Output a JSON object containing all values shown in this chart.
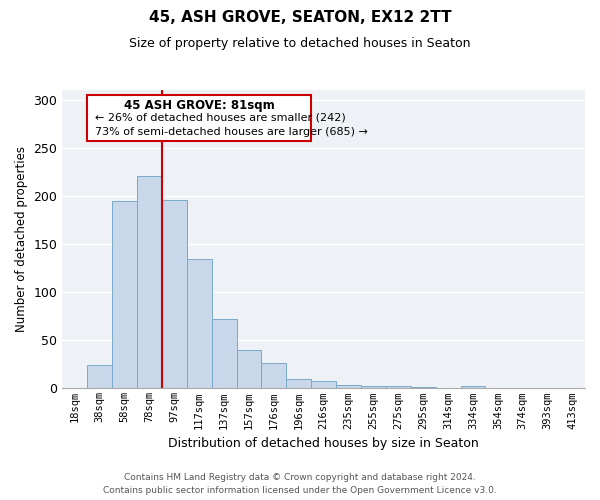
{
  "title": "45, ASH GROVE, SEATON, EX12 2TT",
  "subtitle": "Size of property relative to detached houses in Seaton",
  "xlabel": "Distribution of detached houses by size in Seaton",
  "ylabel": "Number of detached properties",
  "bar_labels": [
    "18sqm",
    "38sqm",
    "58sqm",
    "78sqm",
    "97sqm",
    "117sqm",
    "137sqm",
    "157sqm",
    "176sqm",
    "196sqm",
    "216sqm",
    "235sqm",
    "255sqm",
    "275sqm",
    "295sqm",
    "314sqm",
    "334sqm",
    "354sqm",
    "374sqm",
    "393sqm",
    "413sqm"
  ],
  "bar_values": [
    0,
    24,
    195,
    221,
    196,
    134,
    72,
    40,
    26,
    10,
    8,
    4,
    3,
    2,
    1,
    0,
    3,
    0,
    0,
    0,
    0
  ],
  "bar_color": "#c8d8ea",
  "bar_edge_color": "#7aaac8",
  "vline_color": "#cc0000",
  "ylim": [
    0,
    310
  ],
  "yticks": [
    0,
    50,
    100,
    150,
    200,
    250,
    300
  ],
  "annotation_title": "45 ASH GROVE: 81sqm",
  "annotation_line1": "← 26% of detached houses are smaller (242)",
  "annotation_line2": "73% of semi-detached houses are larger (685) →",
  "footer_line1": "Contains HM Land Registry data © Crown copyright and database right 2024.",
  "footer_line2": "Contains public sector information licensed under the Open Government Licence v3.0.",
  "background_color": "#eef2f7",
  "grid_color": "#ffffff",
  "title_fontsize": 11,
  "subtitle_fontsize": 9,
  "xlabel_fontsize": 9,
  "ylabel_fontsize": 8.5,
  "tick_fontsize": 7.5,
  "footer_fontsize": 6.5
}
